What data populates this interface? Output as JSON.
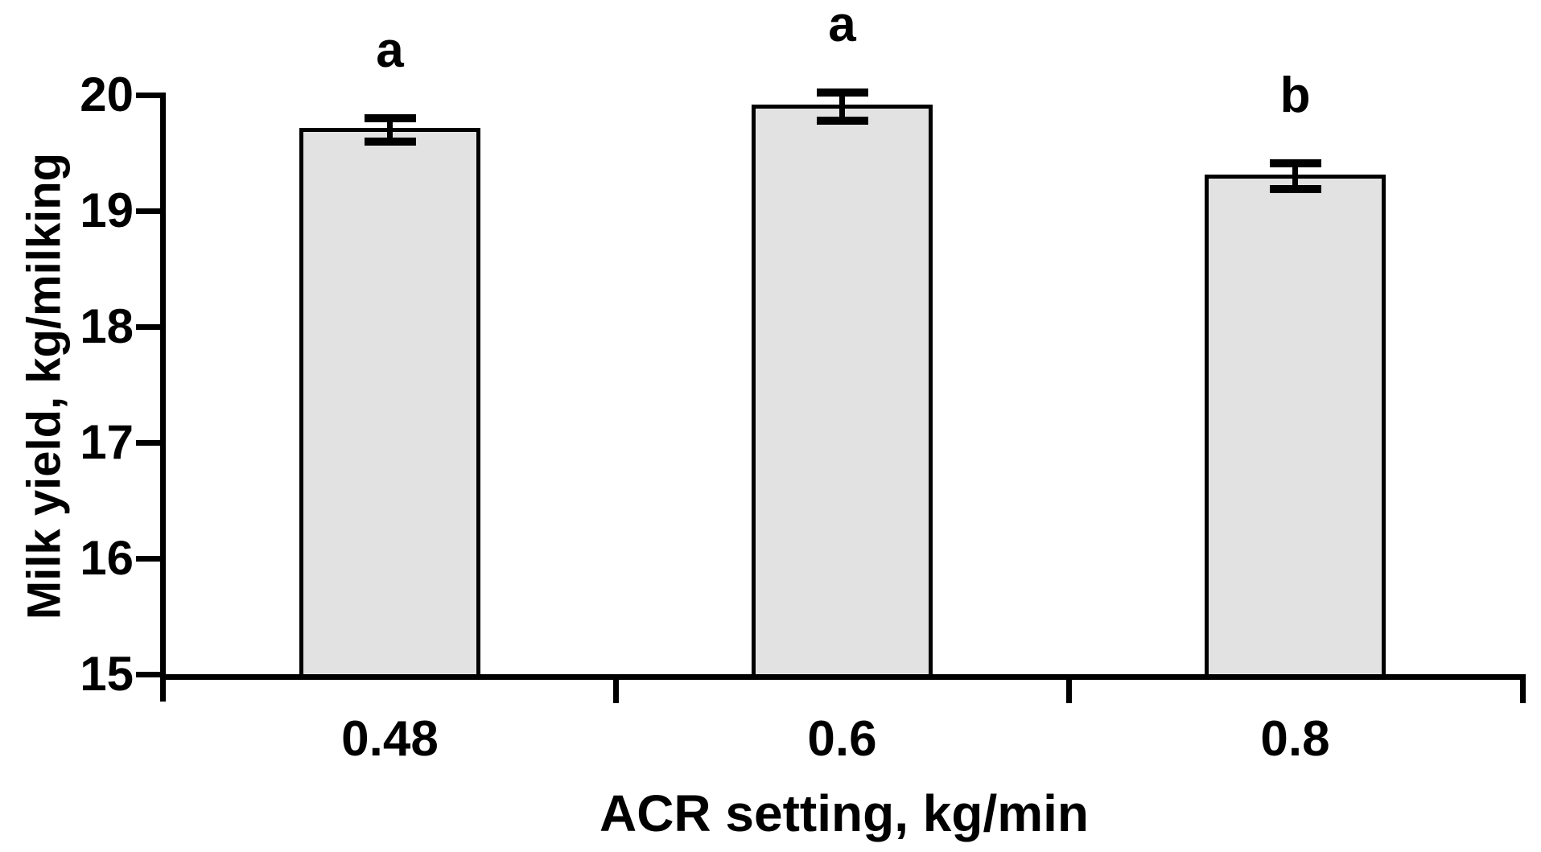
{
  "figure": {
    "background_color": "#ffffff",
    "bar_fill_color": "#e2e2e2",
    "bar_border_color": "#000000",
    "axis_color": "#000000",
    "text_color": "#000000"
  },
  "chart_data": {
    "type": "bar",
    "title": "",
    "categories": [
      "0.48",
      "0.6",
      "0.8"
    ],
    "values": [
      19.7,
      19.9,
      19.3
    ],
    "error_bars": [
      0.1,
      0.12,
      0.11
    ],
    "significance_labels": [
      "a",
      "a",
      "b"
    ],
    "xlabel": "ACR setting, kg/min",
    "ylabel": "Milk yield, kg/milking",
    "ylim": [
      15,
      20
    ],
    "yticks": [
      15,
      16,
      17,
      18,
      19,
      20
    ],
    "grid": false,
    "legend_position": "none",
    "error_bar_note": "mean ± SE with caps"
  }
}
